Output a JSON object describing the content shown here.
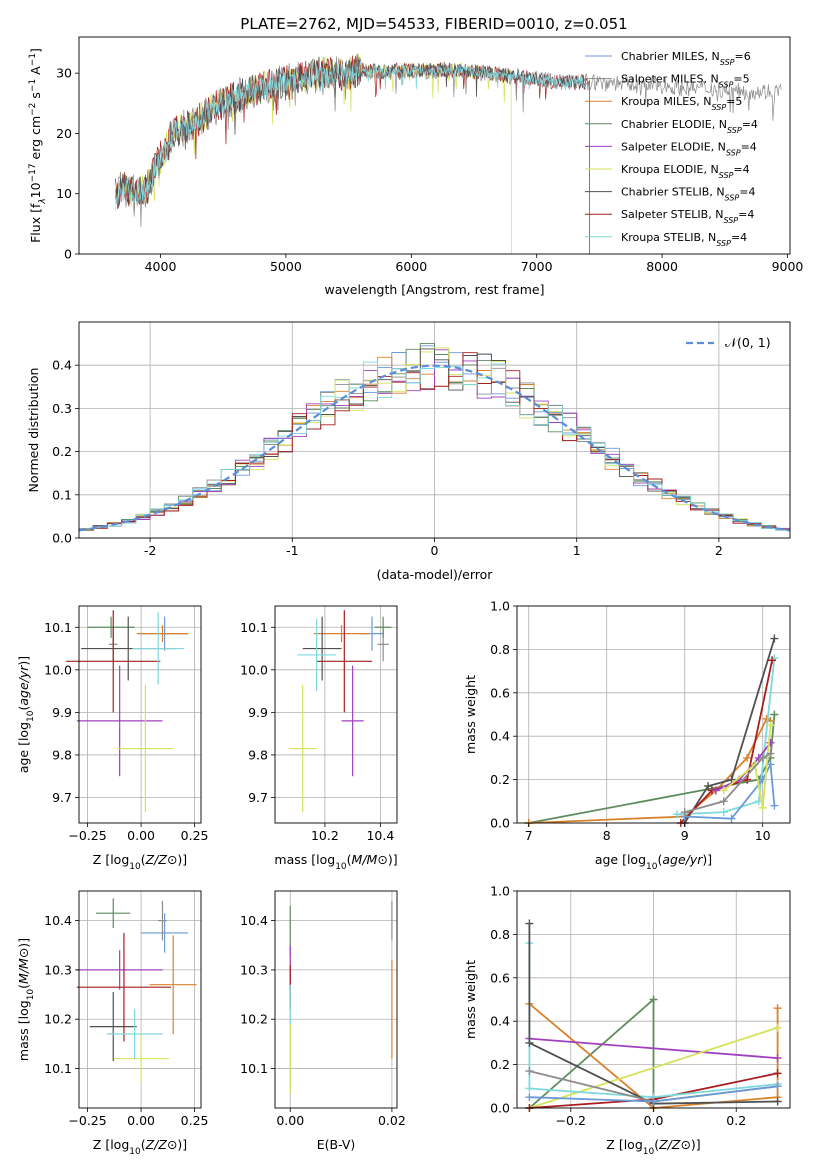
{
  "title": "PLATE=2762, MJD=54533, FIBERID=0010, z=0.051",
  "colors": {
    "Chabrier MILES": "#6a9ad8",
    "Salpeter MILES": "#8c8c8c",
    "Kroupa MILES": "#d9822b",
    "Chabrier ELODIE": "#5e8c5e",
    "Salpeter ELODIE": "#a040c0",
    "Kroupa ELODIE": "#d6e25a",
    "Chabrier STELIB": "#505050",
    "Salpeter STELIB": "#a81e1e",
    "Kroupa STELIB": "#7fd8de"
  },
  "chart_data": [
    {
      "id": "spectrum",
      "type": "line",
      "title": "PLATE=2762, MJD=54533, FIBERID=0010, z=0.051",
      "xlabel": "wavelength [Angstrom, rest frame]",
      "ylabel_parts": [
        "Flux [f",
        "λ",
        "10",
        "−17",
        " erg cm",
        "−2",
        " s",
        "−1",
        " A",
        "−1",
        "]"
      ],
      "xlim": [
        3350,
        9020
      ],
      "ylim": [
        0,
        36
      ],
      "xticks": [
        4000,
        5000,
        6000,
        7000,
        8000,
        9000
      ],
      "yticks": [
        0,
        10,
        20,
        30
      ],
      "continuum_x": [
        3650,
        3700,
        3800,
        3900,
        3950,
        4000,
        4100,
        4200,
        4300,
        4400,
        4500,
        4600,
        4700,
        4800,
        4900,
        5000,
        5100,
        5200,
        5300,
        5400,
        5500,
        5600,
        5700,
        5800,
        5900,
        6000,
        6200,
        6400,
        6600,
        6800,
        7000,
        7200,
        7400,
        7600,
        7800,
        8000,
        8200,
        8400,
        8600,
        8800
      ],
      "continuum_y": [
        10,
        11,
        10,
        11,
        14,
        16,
        20,
        21,
        22,
        24,
        25,
        26,
        27,
        27.5,
        28,
        28.5,
        29,
        29.5,
        30,
        30,
        30,
        30.5,
        30.5,
        30,
        30.5,
        30.5,
        30.5,
        30.5,
        30,
        29.5,
        29,
        28.5,
        28.5,
        28.5,
        28,
        28,
        27.5,
        27.5,
        27,
        27
      ],
      "legend": [
        {
          "name": "Chabrier MILES",
          "n": "6"
        },
        {
          "name": "Salpeter MILES",
          "n": "5"
        },
        {
          "name": "Kroupa MILES",
          "n": "5"
        },
        {
          "name": "Chabrier ELODIE",
          "n": "4"
        },
        {
          "name": "Salpeter ELODIE",
          "n": "4"
        },
        {
          "name": "Kroupa ELODIE",
          "n": "4"
        },
        {
          "name": "Chabrier STELIB",
          "n": "4"
        },
        {
          "name": "Salpeter STELIB",
          "n": "4"
        },
        {
          "name": "Kroupa STELIB",
          "n": "4"
        }
      ],
      "nssp_prefix": "N",
      "nssp_sub": "SSP"
    },
    {
      "id": "residuals",
      "type": "line",
      "xlabel": "(data-model)/error",
      "ylabel": "Normed distribution",
      "xlim": [
        -2.5,
        2.5
      ],
      "ylim": [
        0,
        0.5
      ],
      "xticks": [
        -2,
        -1,
        0,
        1,
        2
      ],
      "yticks": [
        0.0,
        0.1,
        0.2,
        0.3,
        0.4
      ],
      "gaussian_label": "𝒩(0, 1)",
      "gaussian_color": "#5b8ed8"
    },
    {
      "id": "age-vs-Z",
      "type": "scatter",
      "xlabel": "Z [log10(Z/Z⊙)]",
      "ylabel": "age  [log10(age/yr)]",
      "xlim": [
        -0.29,
        0.28
      ],
      "ylim": [
        9.64,
        10.15
      ],
      "xticks": [
        -0.25,
        0.0,
        0.25
      ],
      "xticklabels": [
        "−0.25",
        "0.00",
        "0.25"
      ],
      "yticks": [
        9.7,
        9.8,
        9.9,
        10.0,
        10.1
      ],
      "points": [
        {
          "name": "Chabrier MILES",
          "x": 0.11,
          "xerr": 0.11,
          "y": 10.085,
          "yerr": 0.04
        },
        {
          "name": "Salpeter MILES",
          "x": -0.13,
          "xerr": 0.02,
          "y": 10.06,
          "yerr": 0.04
        },
        {
          "name": "Kroupa MILES",
          "x": 0.1,
          "xerr": 0.12,
          "y": 10.085,
          "yerr": 0.02
        },
        {
          "name": "Chabrier ELODIE",
          "x": -0.14,
          "xerr": 0.11,
          "y": 10.1,
          "yerr": 0.025
        },
        {
          "name": "Salpeter ELODIE",
          "x": -0.1,
          "xerr": 0.2,
          "y": 9.88,
          "yerr": 0.13
        },
        {
          "name": "Kroupa ELODIE",
          "x": 0.02,
          "xerr": 0.13,
          "y": 9.815,
          "yerr": 0.15
        },
        {
          "name": "Chabrier STELIB",
          "x": -0.06,
          "xerr": 0.22,
          "y": 10.05,
          "yerr": 0.075
        },
        {
          "name": "Salpeter STELIB",
          "x": -0.13,
          "xerr": 0.22,
          "y": 10.02,
          "yerr": 0.12
        },
        {
          "name": "Kroupa STELIB",
          "x": 0.08,
          "xerr": 0.12,
          "y": 10.05,
          "yerr": 0.085
        }
      ]
    },
    {
      "id": "age-vs-mass",
      "type": "scatter",
      "xlabel": "mass [log10(M/M⊙)]",
      "xlim": [
        10.02,
        10.46
      ],
      "ylim": [
        9.64,
        10.15
      ],
      "xticks": [
        10.2,
        10.4
      ],
      "yticks": [
        9.7,
        9.8,
        9.9,
        10.0,
        10.1
      ],
      "points": [
        {
          "name": "Chabrier MILES",
          "x": 10.37,
          "xerr": 0.04,
          "y": 10.085,
          "yerr": 0.04
        },
        {
          "name": "Salpeter MILES",
          "x": 10.41,
          "xerr": 0.02,
          "y": 10.06,
          "yerr": 0.04
        },
        {
          "name": "Kroupa MILES",
          "x": 10.26,
          "xerr": 0.1,
          "y": 10.085,
          "yerr": 0.02
        },
        {
          "name": "Chabrier ELODIE",
          "x": 10.41,
          "xerr": 0.03,
          "y": 10.1,
          "yerr": 0.025
        },
        {
          "name": "Salpeter ELODIE",
          "x": 10.3,
          "xerr": 0.04,
          "y": 9.88,
          "yerr": 0.13
        },
        {
          "name": "Kroupa ELODIE",
          "x": 10.12,
          "xerr": 0.05,
          "y": 9.815,
          "yerr": 0.15
        },
        {
          "name": "Chabrier STELIB",
          "x": 10.19,
          "xerr": 0.07,
          "y": 10.05,
          "yerr": 0.075
        },
        {
          "name": "Salpeter STELIB",
          "x": 10.27,
          "xerr": 0.1,
          "y": 10.02,
          "yerr": 0.12
        },
        {
          "name": "Kroupa STELIB",
          "x": 10.17,
          "xerr": 0.07,
          "y": 10.035,
          "yerr": 0.085
        }
      ]
    },
    {
      "id": "weight-vs-age",
      "type": "line",
      "xlabel": "age  [log10(age/yr)]",
      "ylabel": "mass weight",
      "xlim": [
        6.85,
        10.35
      ],
      "ylim": [
        0,
        1
      ],
      "xticks": [
        7,
        8,
        9,
        10
      ],
      "yticks": [
        0.0,
        0.2,
        0.4,
        0.6,
        0.8,
        1.0
      ],
      "series": [
        {
          "name": "Chabrier ELODIE",
          "x": [
            7.0,
            9.95,
            10.1,
            10.15
          ],
          "y": [
            0.0,
            0.2,
            0.3,
            0.5
          ]
        },
        {
          "name": "Kroupa MILES",
          "x": [
            7.0,
            9.0,
            9.4,
            9.8,
            10.05,
            10.1
          ],
          "y": [
            0.0,
            0.03,
            0.15,
            0.3,
            0.48,
            0.47
          ]
        },
        {
          "name": "Chabrier STELIB",
          "x": [
            9.0,
            9.3,
            9.6,
            10.15
          ],
          "y": [
            0.0,
            0.17,
            0.2,
            0.85
          ]
        },
        {
          "name": "Kroupa STELIB",
          "x": [
            8.9,
            9.5,
            9.95,
            10.15
          ],
          "y": [
            0.04,
            0.05,
            0.1,
            0.76
          ]
        },
        {
          "name": "Salpeter STELIB",
          "x": [
            8.95,
            9.35,
            9.8,
            10.12
          ],
          "y": [
            0.0,
            0.15,
            0.2,
            0.75
          ]
        },
        {
          "name": "Chabrier MILES",
          "x": [
            9.0,
            9.6,
            10.0,
            10.1,
            10.15
          ],
          "y": [
            0.03,
            0.02,
            0.2,
            0.27,
            0.08
          ]
        },
        {
          "name": "Salpeter ELODIE",
          "x": [
            9.4,
            9.7,
            9.95,
            10.1
          ],
          "y": [
            0.15,
            0.2,
            0.3,
            0.37
          ]
        },
        {
          "name": "Kroupa ELODIE",
          "x": [
            9.5,
            9.9,
            10.0,
            10.1
          ],
          "y": [
            0.15,
            0.27,
            0.07,
            0.45
          ]
        },
        {
          "name": "Salpeter MILES",
          "x": [
            9.0,
            9.5,
            10.0,
            10.1
          ],
          "y": [
            0.05,
            0.1,
            0.3,
            0.32
          ]
        }
      ]
    },
    {
      "id": "mass-vs-Z",
      "type": "scatter",
      "xlabel": "Z [log10(Z/Z⊙)]",
      "ylabel": "mass [log10(M/M⊙)]",
      "xlim": [
        -0.29,
        0.28
      ],
      "ylim": [
        10.02,
        10.46
      ],
      "xticks": [
        -0.25,
        0.0,
        0.25
      ],
      "xticklabels": [
        "−0.25",
        "0.00",
        "0.25"
      ],
      "yticks": [
        10.1,
        10.2,
        10.3,
        10.4
      ],
      "points": [
        {
          "name": "Chabrier MILES",
          "x": 0.11,
          "xerr": 0.11,
          "y": 10.375,
          "yerr": 0.04
        },
        {
          "name": "Salpeter MILES",
          "x": 0.1,
          "xerr": 0.02,
          "y": 10.4,
          "yerr": 0.04
        },
        {
          "name": "Kroupa MILES",
          "x": 0.15,
          "xerr": 0.11,
          "y": 10.27,
          "yerr": 0.1
        },
        {
          "name": "Chabrier ELODIE",
          "x": -0.13,
          "xerr": 0.08,
          "y": 10.415,
          "yerr": 0.03
        },
        {
          "name": "Salpeter ELODIE",
          "x": -0.1,
          "xerr": 0.2,
          "y": 10.3,
          "yerr": 0.04
        },
        {
          "name": "Kroupa ELODIE",
          "x": 0.0,
          "xerr": 0.13,
          "y": 10.12,
          "yerr": 0.05
        },
        {
          "name": "Chabrier STELIB",
          "x": -0.13,
          "xerr": 0.11,
          "y": 10.185,
          "yerr": 0.07
        },
        {
          "name": "Salpeter STELIB",
          "x": -0.08,
          "xerr": 0.22,
          "y": 10.265,
          "yerr": 0.11
        },
        {
          "name": "Kroupa STELIB",
          "x": -0.03,
          "xerr": 0.13,
          "y": 10.17,
          "yerr": 0.05
        }
      ]
    },
    {
      "id": "mass-vs-ebv",
      "type": "scatter",
      "xlabel": "E(B-V)",
      "xlim": [
        -0.003,
        0.021
      ],
      "ylim": [
        10.02,
        10.46
      ],
      "xticks": [
        0.0,
        0.02
      ],
      "xticklabels": [
        "0.00",
        "0.02"
      ],
      "yticks": [
        10.1,
        10.2,
        10.3,
        10.4
      ],
      "points": [
        {
          "name": "Chabrier ELODIE",
          "x": 0.0,
          "y": 10.38,
          "yerr": 0.05
        },
        {
          "name": "Salpeter ELODIE",
          "x": 0.0,
          "y": 10.3,
          "yerr": 0.05
        },
        {
          "name": "Salpeter STELIB",
          "x": 0.0,
          "y": 10.265,
          "yerr": 0.045
        },
        {
          "name": "Kroupa STELIB",
          "x": 0.0,
          "y": 10.17,
          "yerr": 0.1
        },
        {
          "name": "Kroupa ELODIE",
          "x": 0.0,
          "y": 10.12,
          "yerr": 0.07
        },
        {
          "name": "Salpeter MILES",
          "x": 0.02,
          "y": 10.4,
          "yerr": 0.04
        },
        {
          "name": "Kroupa MILES",
          "x": 0.02,
          "y": 10.22,
          "yerr": 0.1
        }
      ]
    },
    {
      "id": "weight-vs-Z",
      "type": "line",
      "xlabel": "Z [log10(Z/Z⊙)]",
      "ylabel": "mass weight",
      "xlim": [
        -0.33,
        0.33
      ],
      "ylim": [
        0,
        1
      ],
      "xticks": [
        -0.2,
        0.0,
        0.2
      ],
      "xticklabels": [
        "−0.2",
        "0.0",
        "0.2"
      ],
      "yticks": [
        0.0,
        0.2,
        0.4,
        0.6,
        0.8,
        1.0
      ],
      "series": [
        {
          "name": "Chabrier ELODIE",
          "x": [
            -0.3,
            0.0,
            0.0
          ],
          "y": [
            0.0,
            0.5,
            0.0
          ]
        },
        {
          "name": "Kroupa MILES",
          "x": [
            -0.3,
            0.0,
            0.3,
            0.3
          ],
          "y": [
            0.48,
            0.0,
            0.05,
            0.46
          ]
        },
        {
          "name": "Salpeter ELODIE",
          "x": [
            -0.3,
            0.3
          ],
          "y": [
            0.32,
            0.23
          ]
        },
        {
          "name": "Kroupa ELODIE",
          "x": [
            -0.3,
            0.3
          ],
          "y": [
            0.0,
            0.37
          ]
        },
        {
          "name": "Salpeter STELIB",
          "x": [
            -0.3,
            0.0,
            0.3
          ],
          "y": [
            0.0,
            0.04,
            0.16
          ]
        },
        {
          "name": "Kroupa STELIB",
          "x": [
            -0.3,
            -0.3,
            0.0,
            0.3
          ],
          "y": [
            0.76,
            0.09,
            0.05,
            0.11
          ]
        },
        {
          "name": "Chabrier STELIB",
          "x": [
            -0.3,
            -0.3,
            0.0,
            0.3
          ],
          "y": [
            0.85,
            0.3,
            0.02,
            0.03
          ]
        },
        {
          "name": "Salpeter MILES",
          "x": [
            -0.3,
            0.0,
            0.3
          ],
          "y": [
            0.17,
            0.03,
            0.1
          ]
        },
        {
          "name": "Chabrier MILES",
          "x": [
            -0.3,
            0.0,
            0.3
          ],
          "y": [
            0.05,
            0.03,
            0.1
          ]
        }
      ]
    }
  ]
}
